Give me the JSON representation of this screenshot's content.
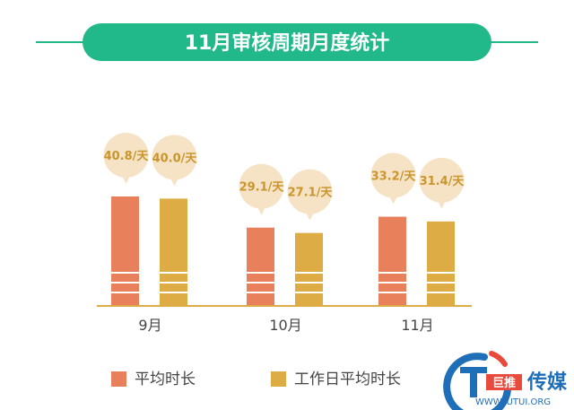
{
  "chart_data": {
    "type": "bar",
    "title": "11月审核周期月度统计",
    "categories": [
      "9月",
      "10月",
      "11月"
    ],
    "series": [
      {
        "name": "平均时长",
        "values": [
          40.8,
          29.1,
          33.2
        ],
        "labels": [
          "40.8/天",
          "29.1/天",
          "33.2/天"
        ]
      },
      {
        "name": "工作日平均时长",
        "values": [
          40.0,
          27.1,
          31.4
        ],
        "labels": [
          "40.0/天",
          "27.1/天",
          "31.4/天"
        ]
      }
    ],
    "ylim": [
      0,
      45
    ],
    "grid": false,
    "legend": "bottom-left"
  },
  "colors": {
    "title_band": "#21b88a",
    "series": [
      "#e8805c",
      "#deac44"
    ],
    "bubble": "#f6e2c4",
    "bubble_text": "#c9962e",
    "axis": "#deac44",
    "text": "#444444"
  },
  "watermark": {
    "brand": "巨推",
    "name": "传媒",
    "url": "WWW.JUTUI.ORG"
  }
}
